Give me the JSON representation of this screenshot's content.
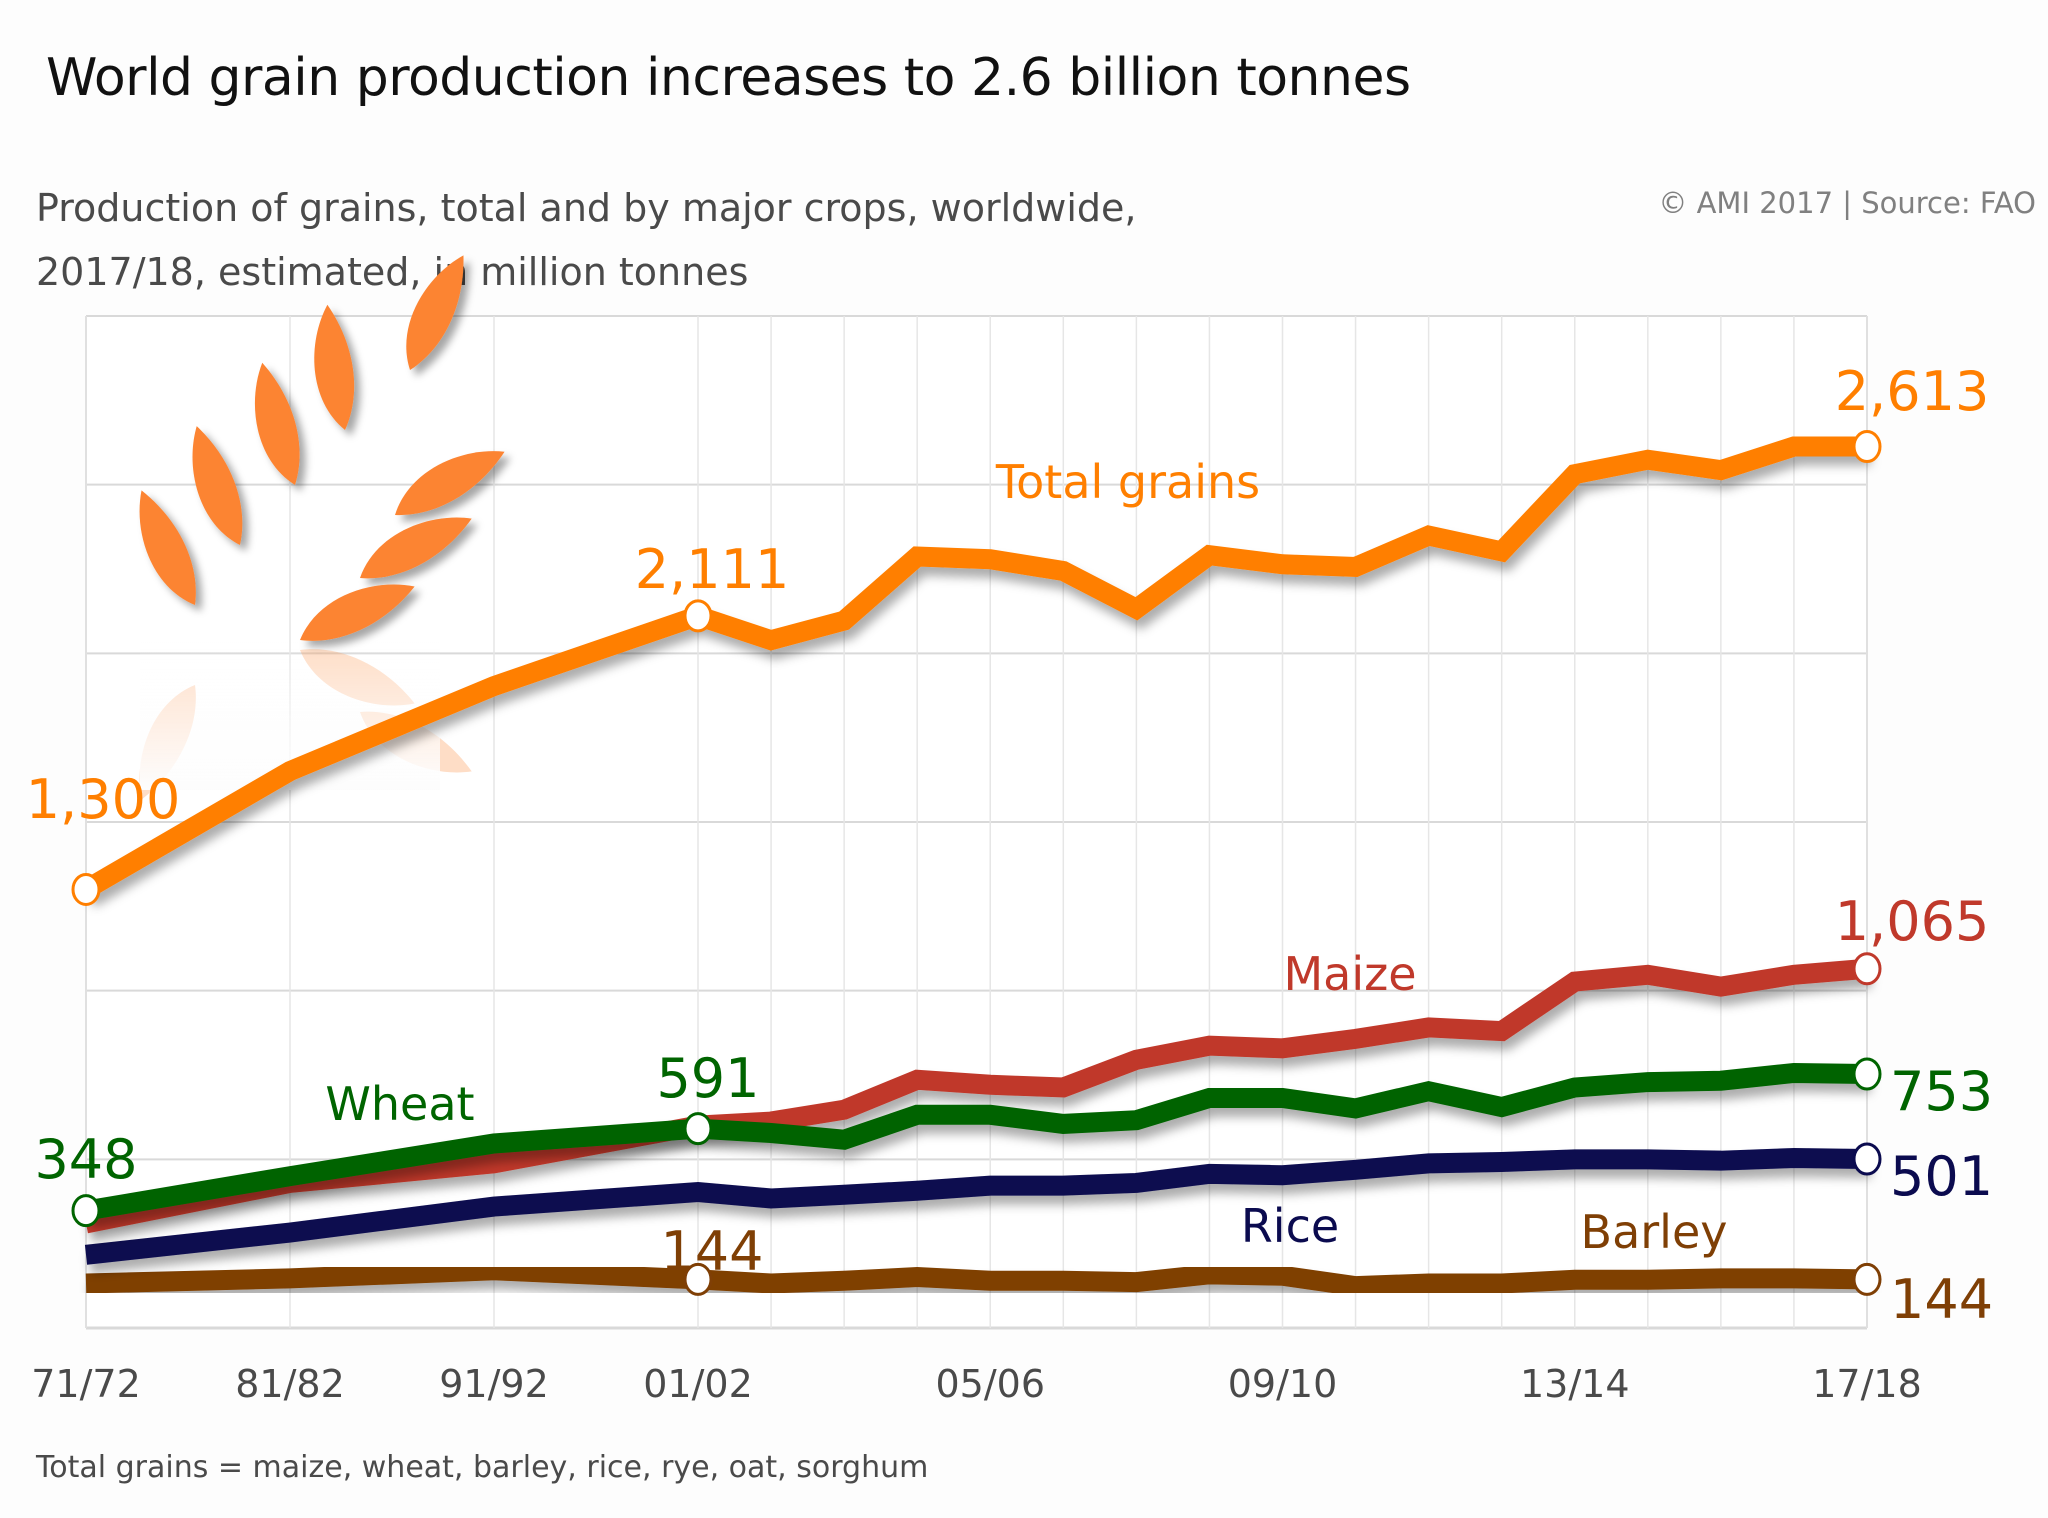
{
  "header": {
    "title": "World grain production increases to 2.6 billion tonnes",
    "subtitle_line1": "Production of grains, total and by major crops, worldwide,",
    "subtitle_line2": "2017/18, estimated, in million tonnes",
    "source": "© AMI 2017 | Source: FAO"
  },
  "footnote": "Total grains = maize, wheat, barley, rice, rye, oat, sorghum",
  "icon": "wheat-ear-icon",
  "chart_data": {
    "type": "line",
    "title": "World grain production increases to 2.6 billion tonnes",
    "subtitle": "Production of grains, total and by major crops, worldwide, 2017/18, estimated, in million tonnes",
    "xlabel": "",
    "ylabel": "million tonnes",
    "ylim": [
      0,
      3000
    ],
    "y_gridlines": [
      0,
      500,
      1000,
      1500,
      2000,
      2500,
      3000
    ],
    "grid": true,
    "legend": "inline labels",
    "x": [
      "71/72",
      "81/82",
      "91/92",
      "01/02",
      "02/03",
      "03/04",
      "04/05",
      "05/06",
      "06/07",
      "07/08",
      "08/09",
      "09/10",
      "10/11",
      "11/12",
      "12/13",
      "13/14",
      "14/15",
      "15/16",
      "16/17",
      "17/18"
    ],
    "x_start_year": [
      1971,
      1981,
      1991,
      2001,
      2002,
      2003,
      2004,
      2005,
      2006,
      2007,
      2008,
      2009,
      2010,
      2011,
      2012,
      2013,
      2014,
      2015,
      2016,
      2017
    ],
    "x_tick_labels": [
      "71/72",
      "81/82",
      "91/92",
      "01/02",
      "05/06",
      "09/10",
      "13/14",
      "17/18"
    ],
    "series": [
      {
        "name": "Total grains",
        "label": "Total grains",
        "color": "#ff7f00",
        "values": [
          1300,
          1651,
          1903,
          2111,
          2039,
          2097,
          2287,
          2279,
          2244,
          2132,
          2291,
          2264,
          2256,
          2349,
          2302,
          2531,
          2574,
          2543,
          2613,
          2613
        ],
        "annotations": [
          {
            "index": 0,
            "text": "1,300"
          },
          {
            "index": 3,
            "text": "2,111"
          },
          {
            "index": 19,
            "text": "2,613"
          }
        ]
      },
      {
        "name": "Maize",
        "label": "Maize",
        "color": "#c0392b",
        "values": [
          310,
          430,
          488,
          600,
          612,
          647,
          736,
          721,
          713,
          795,
          837,
          829,
          857,
          891,
          880,
          1027,
          1047,
          1012,
          1047,
          1065
        ],
        "annotations": [
          {
            "index": 19,
            "text": "1,065"
          }
        ]
      },
      {
        "name": "Wheat",
        "label": "Wheat",
        "color": "#006400",
        "values": [
          348,
          450,
          547,
          591,
          578,
          558,
          632,
          632,
          605,
          616,
          682,
          682,
          651,
          702,
          655,
          713,
          729,
          733,
          756,
          753
        ],
        "annotations": [
          {
            "index": 0,
            "text": "348"
          },
          {
            "index": 3,
            "text": "591"
          },
          {
            "index": 19,
            "text": "753"
          }
        ]
      },
      {
        "name": "Rice",
        "label": "Rice",
        "color": "#0b0b4f",
        "values": [
          217,
          283,
          360,
          403,
          384,
          395,
          407,
          422,
          422,
          430,
          457,
          453,
          469,
          488,
          492,
          500,
          500,
          496,
          504,
          501
        ],
        "annotations": [
          {
            "index": 19,
            "text": "501"
          }
        ]
      },
      {
        "name": "Barley",
        "label": "Barley",
        "color": "#7f3f05",
        "values": [
          132,
          147,
          171,
          144,
          132,
          140,
          151,
          140,
          140,
          136,
          159,
          155,
          124,
          132,
          132,
          143,
          143,
          147,
          147,
          144
        ],
        "annotations": [
          {
            "index": 3,
            "text": "144"
          },
          {
            "index": 19,
            "text": "144"
          }
        ]
      }
    ]
  }
}
